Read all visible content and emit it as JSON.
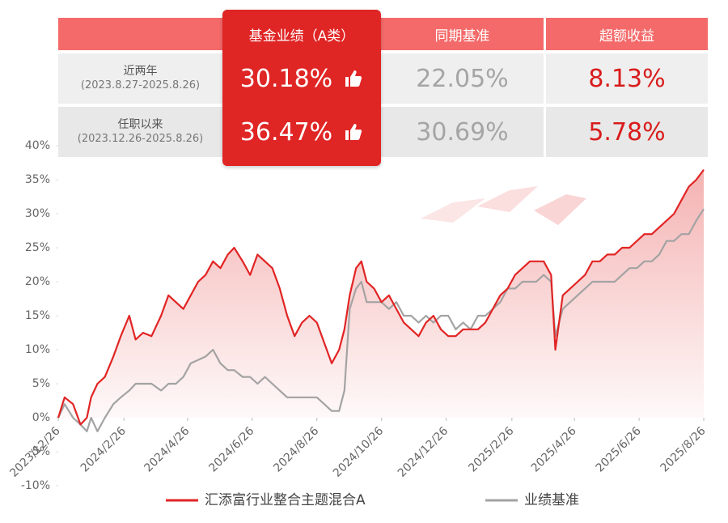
{
  "chart_data": {
    "type": "line",
    "x": [
      "2023/12/26",
      "2024/1/1",
      "2024/1/9",
      "2024/1/16",
      "2024/1/22",
      "2024/1/26",
      "2024/2/1",
      "2024/2/8",
      "2024/2/16",
      "2024/2/23",
      "2024/3/2",
      "2024/3/8",
      "2024/3/15",
      "2024/3/23",
      "2024/4/1",
      "2024/4/8",
      "2024/4/15",
      "2024/4/22",
      "2024/4/29",
      "2024/5/6",
      "2024/5/13",
      "2024/5/20",
      "2024/5/27",
      "2024/6/3",
      "2024/6/9",
      "2024/6/17",
      "2024/6/24",
      "2024/7/1",
      "2024/7/8",
      "2024/7/15",
      "2024/7/22",
      "2024/7/29",
      "2024/8/5",
      "2024/8/12",
      "2024/8/19",
      "2024/8/26",
      "2024/9/2",
      "2024/9/9",
      "2024/9/16",
      "2024/9/21",
      "2024/9/26",
      "2024/10/2",
      "2024/10/7",
      "2024/10/12",
      "2024/10/19",
      "2024/10/26",
      "2024/11/2",
      "2024/11/9",
      "2024/11/16",
      "2024/11/23",
      "2024/11/30",
      "2024/12/7",
      "2024/12/14",
      "2024/12/21",
      "2024/12/28",
      "2025/1/4",
      "2025/1/11",
      "2025/1/18",
      "2025/1/25",
      "2025/2/1",
      "2025/2/8",
      "2025/2/15",
      "2025/2/22",
      "2025/3/1",
      "2025/3/8",
      "2025/3/15",
      "2025/3/21",
      "2025/3/28",
      "2025/4/4",
      "2025/4/8",
      "2025/4/15",
      "2025/4/22",
      "2025/4/29",
      "2025/5/6",
      "2025/5/13",
      "2025/5/20",
      "2025/5/27",
      "2025/6/3",
      "2025/6/10",
      "2025/6/17",
      "2025/6/24",
      "2025/7/1",
      "2025/7/8",
      "2025/7/15",
      "2025/7/22",
      "2025/7/29",
      "2025/8/5",
      "2025/8/12",
      "2025/8/19",
      "2025/8/26"
    ],
    "series": [
      {
        "name": "汇添富行业整合主题混合A",
        "color": "#e12424",
        "values": [
          0,
          3,
          2,
          -1,
          0,
          3,
          5,
          6,
          9,
          12,
          15,
          11.5,
          12.5,
          12,
          15,
          18,
          17,
          16,
          18,
          20,
          21,
          23,
          22,
          24,
          25,
          23,
          21,
          24,
          23,
          22,
          19,
          15,
          12,
          14,
          15,
          14,
          11,
          8,
          10,
          13,
          18,
          22,
          23,
          20,
          19,
          17,
          18,
          16,
          14,
          13,
          12,
          14,
          15,
          13,
          12,
          12,
          13,
          13,
          13,
          14,
          16,
          18,
          19,
          21,
          22,
          23,
          23,
          23,
          21,
          10,
          18,
          19,
          20,
          21,
          23,
          23,
          24,
          24,
          25,
          25,
          26,
          27,
          27,
          28,
          29,
          30,
          32,
          34,
          35,
          36.47
        ]
      },
      {
        "name": "业绩基准",
        "color": "#a3a3a3",
        "values": [
          0,
          2,
          0,
          -1,
          -2,
          0,
          -2,
          0,
          2,
          3,
          4,
          5,
          5,
          5,
          4,
          5,
          5,
          6,
          8,
          8.5,
          9,
          10,
          8,
          7,
          7,
          6,
          6,
          5,
          6,
          5,
          4,
          3,
          3,
          3,
          3,
          3,
          2,
          1,
          1,
          4,
          16,
          19,
          20,
          17,
          17,
          17,
          16,
          17,
          15,
          15,
          14,
          15,
          14,
          15,
          15,
          13,
          14,
          13,
          15,
          15,
          16,
          17,
          19,
          19,
          20,
          20,
          20,
          21,
          20,
          12,
          16,
          17,
          18,
          19,
          20,
          20,
          20,
          20,
          21,
          22,
          22,
          23,
          23,
          24,
          26,
          26,
          27,
          27,
          29,
          30.69
        ]
      }
    ],
    "xlim": [
      "2023/12/26",
      "2025/8/26"
    ],
    "xticks": [
      "2023/12/26",
      "2024/2/26",
      "2024/4/26",
      "2024/6/26",
      "2024/8/26",
      "2024/10/26",
      "2024/12/26",
      "2025/2/26",
      "2025/4/26",
      "2025/6/26",
      "2025/8/26"
    ],
    "ylim": [
      -10,
      40
    ],
    "yticks": [
      {
        "value": -10,
        "label": "-10%"
      },
      {
        "value": -5,
        "label": "-5%"
      },
      {
        "value": 0,
        "label": "0%"
      },
      {
        "value": 5,
        "label": "5%"
      },
      {
        "value": 10,
        "label": "10%"
      },
      {
        "value": 15,
        "label": "15%"
      },
      {
        "value": 20,
        "label": "20%"
      },
      {
        "value": 25,
        "label": "25%"
      },
      {
        "value": 30,
        "label": "30%"
      },
      {
        "value": 35,
        "label": "35%"
      },
      {
        "value": 40,
        "label": "40%"
      }
    ],
    "legend": "bottom"
  },
  "table": {
    "header": [
      "基金业绩（A类）",
      "同期基准",
      "超额收益"
    ],
    "rows": [
      {
        "period": "近两年",
        "range": "(2023.8.27-2025.8.26)",
        "cells": [
          "30.18%",
          "22.05%",
          "8.13%"
        ]
      },
      {
        "period": "任职以来",
        "range": "(2023.12.26-2025.8.26)",
        "cells": [
          "36.47%",
          "30.69%",
          "5.78%"
        ]
      }
    ]
  }
}
